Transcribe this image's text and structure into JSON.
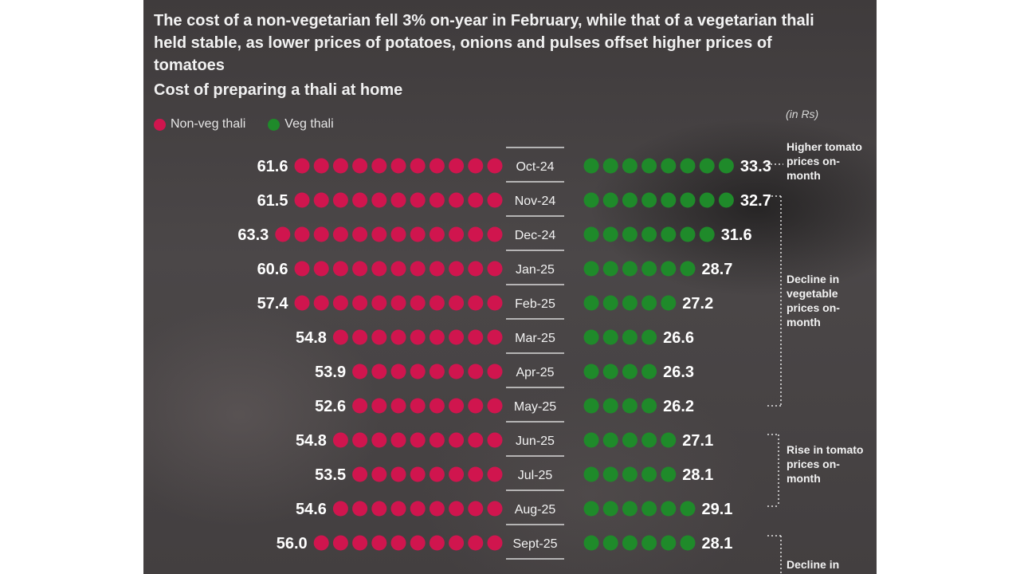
{
  "headline": "The cost of a non-vegetarian fell 3% on-year in February, while that of a vegetarian thali held stable, as lower prices of potatoes, onions and pulses offset higher prices of tomatoes",
  "subtitle": "Cost of preparing a thali at home",
  "unit": "(in Rs)",
  "colors": {
    "nonveg": "#d0154e",
    "veg": "#1f8a2a"
  },
  "chart_data": {
    "type": "dot-bar",
    "title": "Cost of preparing a thali at home",
    "categories": [
      "Oct-24",
      "Nov-24",
      "Dec-24",
      "Jan-25",
      "Feb-25",
      "Mar-25",
      "Apr-25",
      "May-25",
      "Jun-25",
      "Jul-25",
      "Aug-25",
      "Sept-25"
    ],
    "series": [
      {
        "name": "Non-veg thali",
        "values": [
          61.6,
          61.5,
          63.3,
          60.6,
          57.4,
          54.8,
          53.9,
          52.6,
          54.8,
          53.5,
          54.6,
          56.0
        ],
        "labels": [
          "61.6",
          "61.5",
          "63.3",
          "60.6",
          "57.4",
          "54.8",
          "53.9",
          "52.6",
          "54.8",
          "53.5",
          "54.6",
          "56.0"
        ],
        "dots": [
          11,
          11,
          12,
          11,
          11,
          9,
          8,
          8,
          9,
          8,
          9,
          10
        ]
      },
      {
        "name": "Veg thali",
        "values": [
          33.3,
          32.7,
          31.6,
          28.7,
          27.2,
          26.6,
          26.3,
          26.2,
          27.1,
          28.1,
          29.1,
          28.1
        ],
        "labels": [
          "33.3",
          "32.7",
          "31.6",
          "28.7",
          "27.2",
          "26.6",
          "26.3",
          "26.2",
          "27.1",
          "28.1",
          "29.1",
          "28.1"
        ],
        "dots": [
          8,
          8,
          7,
          6,
          5,
          4,
          4,
          4,
          5,
          5,
          6,
          6
        ]
      }
    ],
    "legend": "top-left",
    "grid": false
  },
  "annotations": [
    {
      "text": "Higher tomato prices on-month"
    },
    {
      "text": "Decline in vegetable prices on-month"
    },
    {
      "text": "Rise in tomato prices on-month"
    },
    {
      "text": "Decline in"
    }
  ]
}
